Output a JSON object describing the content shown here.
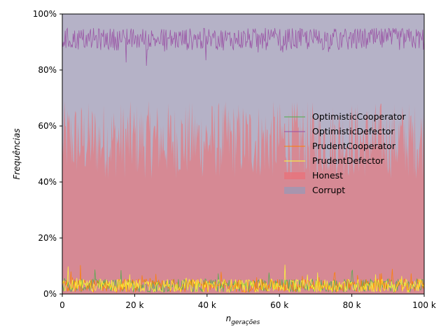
{
  "chart_data": {
    "type": "area",
    "xlabel_main": "n",
    "xlabel_sub": "gerações",
    "ylabel": "Frequências",
    "xlim": [
      0,
      100000
    ],
    "ylim": [
      0,
      1
    ],
    "x_ticks": [
      0,
      20000,
      40000,
      60000,
      80000,
      100000
    ],
    "x_tick_labels": [
      "0",
      "20 k",
      "40 k",
      "60 k",
      "80 k",
      "100 k"
    ],
    "y_ticks": [
      0,
      0.2,
      0.4,
      0.6,
      0.8,
      1.0
    ],
    "y_tick_labels": [
      "0%",
      "20%",
      "40%",
      "60%",
      "80%",
      "100%"
    ],
    "legend_position": "center-right",
    "areas": [
      {
        "name": "Honest",
        "color": "#e8737a",
        "mean_fraction": 0.55,
        "min_fraction": 0.35,
        "max_fraction": 0.73
      },
      {
        "name": "Corrupt",
        "color": "#9c98b4",
        "mean_fraction": 0.45
      }
    ],
    "series": [
      {
        "name": "OptimisticCooperator",
        "color": "#4daf4a",
        "mean": 0.03,
        "min": 0.005,
        "max": 0.1
      },
      {
        "name": "OptimisticDefector",
        "color": "#984ea3",
        "mean": 0.91,
        "min": 0.79,
        "max": 0.98
      },
      {
        "name": "PrudentCooperator",
        "color": "#ff7f00",
        "mean": 0.03,
        "min": 0.005,
        "max": 0.12
      },
      {
        "name": "PrudentDefector",
        "color": "#ffff33",
        "mean": 0.03,
        "min": 0.005,
        "max": 0.12
      }
    ]
  }
}
